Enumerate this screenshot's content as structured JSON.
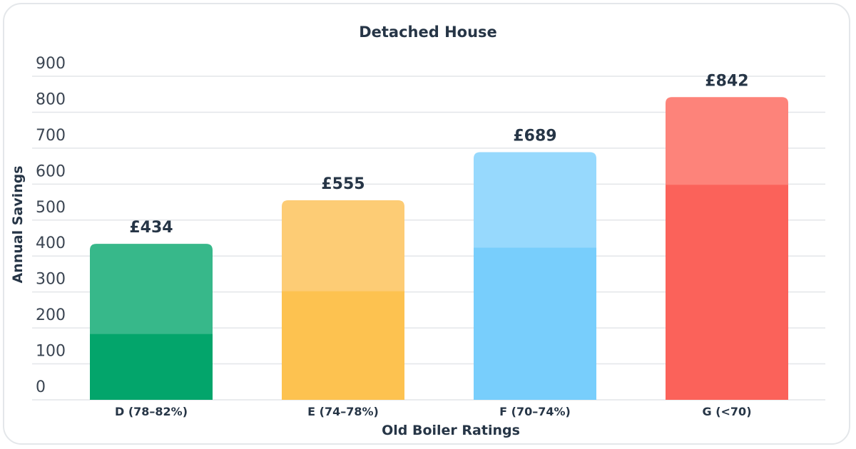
{
  "chart_data": {
    "type": "bar",
    "title": "Detached House",
    "xlabel": "Old Boiler Ratings",
    "ylabel": "Annual Savings",
    "categories": [
      "D (78–82%)",
      "E (74–78%)",
      "F (70–74%)",
      "G (<70)"
    ],
    "values": [
      434,
      555,
      689,
      842
    ],
    "data_labels": [
      "£434",
      "£555",
      "£689",
      "£842"
    ],
    "lower_segment_values": [
      183,
      302,
      423,
      598
    ],
    "ylim": [
      0,
      900
    ],
    "yticks": [
      "0",
      "100",
      "200",
      "300",
      "400",
      "500",
      "600",
      "700",
      "800",
      "900"
    ],
    "grid": true,
    "colors": {
      "light": [
        "#37b88a",
        "#fdcc75",
        "#97d9fd",
        "#fd837a"
      ],
      "dark": [
        "#03a56b",
        "#fdc250",
        "#78cefc",
        "#fb625a"
      ]
    }
  }
}
